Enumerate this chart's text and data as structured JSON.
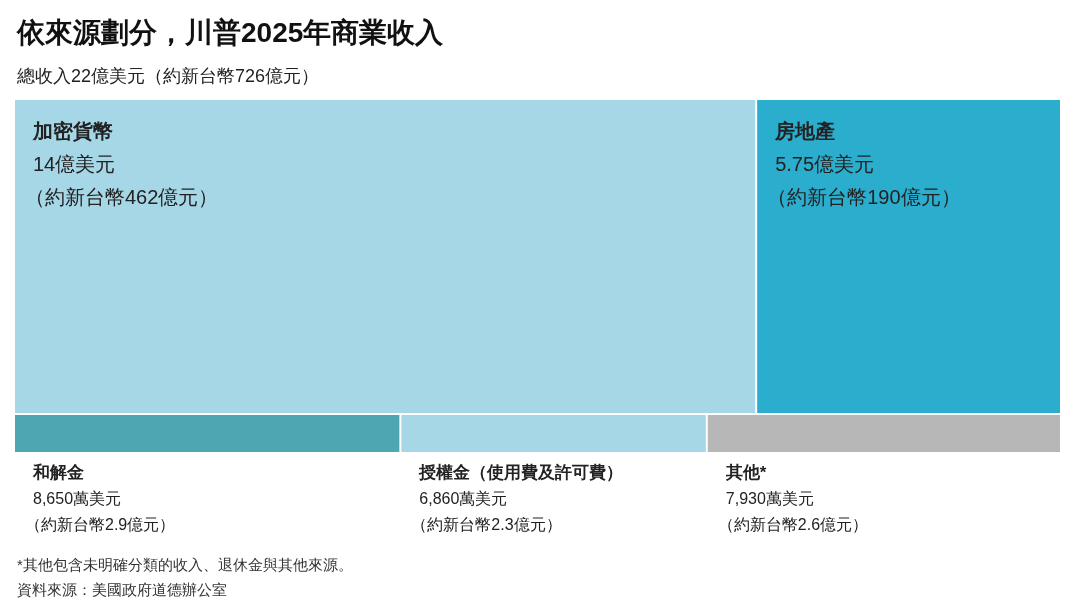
{
  "chart_data": [
    {
      "type": "other",
      "title": "依來源劃分，川普2025年商業收入",
      "subtitle": "總收入22億美元（約新台幣726億元）",
      "categories": [
        "加密貨幣",
        "房地產"
      ],
      "values": [
        14,
        5.75
      ],
      "value_labels": [
        "14億美元",
        "5.75億美元"
      ],
      "colors": [
        "#a6d7e7",
        "#2badcd"
      ],
      "annotations": [
        {
          "text": "（約新台幣462億元）",
          "x": "加密貨幣"
        },
        {
          "text": "（約新台幣190億元）",
          "x": "房地產"
        }
      ]
    },
    {
      "type": "other",
      "categories": [
        "和解金",
        "授權金（使用費及許可費）",
        "其他*"
      ],
      "values": [
        8650,
        6860,
        7930
      ],
      "value_labels": [
        "8,650萬美元",
        "6,860萬美元",
        "7,930萬美元"
      ],
      "colors": [
        "#4ea6b2",
        "#a6d7e7",
        "#b7b7b7"
      ],
      "annotations": [
        {
          "text": "（約新台幣2.9億元）",
          "x": "和解金"
        },
        {
          "text": "（約新台幣2.3億元）",
          "x": "授權金（使用費及許可費）"
        },
        {
          "text": "（約新台幣2.6億元）",
          "x": "其他*"
        },
        "*其他包含未明確分類的收入、退休金與其他來源。",
        "資料來源：美國政府道德辦公室"
      ]
    }
  ]
}
